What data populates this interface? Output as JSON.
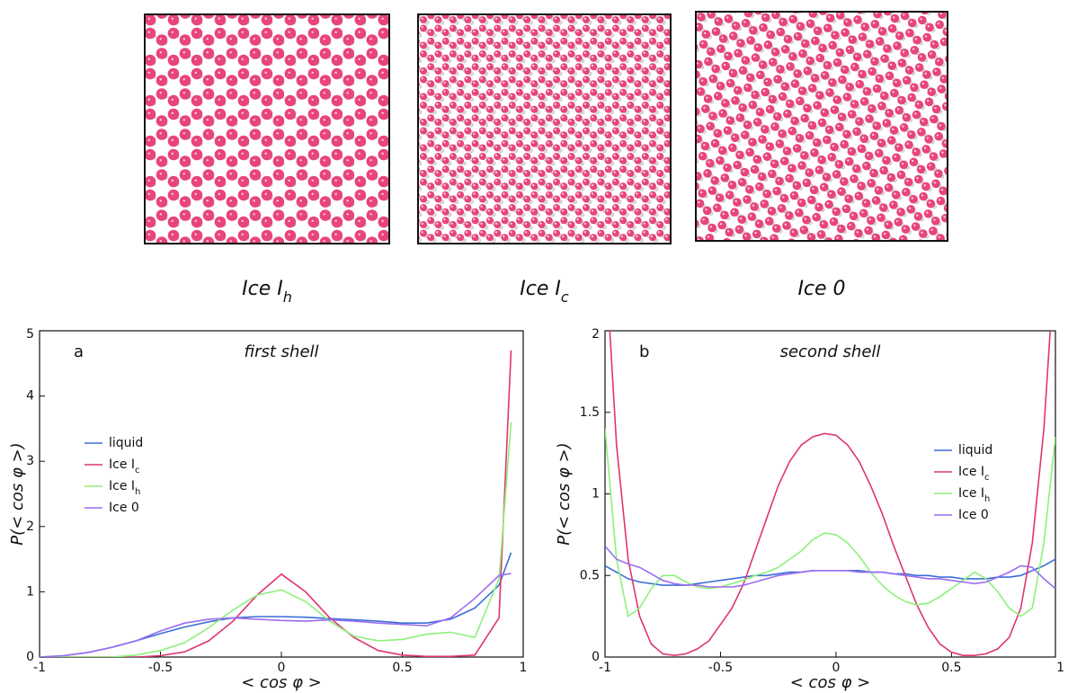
{
  "structures": [
    {
      "label": "Ice I",
      "sub": "h"
    },
    {
      "label": "Ice I",
      "sub": "c"
    },
    {
      "label": "Ice 0"
    }
  ],
  "chart_data": [
    {
      "type": "line",
      "panel": "a",
      "title": "first shell",
      "x_label": "< cos φ >",
      "y_label": "P(< cos φ >)",
      "xlim": [
        -1,
        1
      ],
      "ylim": [
        0,
        5
      ],
      "xticks": [
        -1,
        -0.5,
        0,
        0.5,
        1
      ],
      "yticks": [
        0,
        1,
        2,
        3,
        4,
        5
      ],
      "grid": false,
      "legend": "left",
      "x": [
        -1,
        -0.9,
        -0.8,
        -0.7,
        -0.6,
        -0.5,
        -0.4,
        -0.3,
        -0.2,
        -0.1,
        0,
        0.1,
        0.2,
        0.3,
        0.4,
        0.5,
        0.6,
        0.7,
        0.8,
        0.9,
        0.95
      ],
      "series": [
        {
          "name": "liquid",
          "color": "#3b6fd6",
          "values": [
            0,
            0.02,
            0.07,
            0.15,
            0.25,
            0.36,
            0.46,
            0.54,
            0.6,
            0.62,
            0.62,
            0.61,
            0.59,
            0.57,
            0.55,
            0.52,
            0.52,
            0.58,
            0.75,
            1.1,
            1.6
          ]
        },
        {
          "name": "Ice I",
          "sub": "c",
          "color": "#e0356e",
          "values": [
            0,
            0,
            0,
            0,
            0,
            0.02,
            0.08,
            0.25,
            0.55,
            0.95,
            1.27,
            1.0,
            0.6,
            0.3,
            0.1,
            0.03,
            0.01,
            0.01,
            0.03,
            0.6,
            4.7
          ]
        },
        {
          "name": "Ice I",
          "sub": "h",
          "color": "#8ef07c",
          "values": [
            0,
            0,
            0,
            0,
            0.03,
            0.1,
            0.22,
            0.45,
            0.72,
            0.95,
            1.03,
            0.85,
            0.55,
            0.32,
            0.25,
            0.27,
            0.35,
            0.38,
            0.3,
            1.2,
            3.6
          ]
        },
        {
          "name": "Ice 0",
          "color": "#9b6cf0",
          "values": [
            0,
            0.02,
            0.07,
            0.15,
            0.25,
            0.4,
            0.52,
            0.58,
            0.6,
            0.58,
            0.56,
            0.55,
            0.57,
            0.55,
            0.52,
            0.5,
            0.48,
            0.6,
            0.9,
            1.25,
            1.28
          ]
        }
      ]
    },
    {
      "type": "line",
      "panel": "b",
      "title": "second shell",
      "x_label": "< cos φ >",
      "y_label": "P(< cos φ >)",
      "xlim": [
        -1,
        0.95
      ],
      "ylim": [
        0,
        2
      ],
      "xticks": [
        -1,
        -0.5,
        0,
        0.5,
        1
      ],
      "yticks": [
        0,
        0.5,
        1,
        1.5,
        2
      ],
      "grid": false,
      "legend": "right",
      "x": [
        -1,
        -0.95,
        -0.9,
        -0.85,
        -0.8,
        -0.75,
        -0.7,
        -0.65,
        -0.6,
        -0.55,
        -0.5,
        -0.45,
        -0.4,
        -0.35,
        -0.3,
        -0.25,
        -0.2,
        -0.15,
        -0.1,
        -0.05,
        0,
        0.05,
        0.1,
        0.15,
        0.2,
        0.25,
        0.3,
        0.35,
        0.4,
        0.45,
        0.5,
        0.55,
        0.6,
        0.65,
        0.7,
        0.75,
        0.8,
        0.85,
        0.9,
        0.95
      ],
      "series": [
        {
          "name": "liquid",
          "color": "#3b6fd6",
          "values": [
            0.56,
            0.52,
            0.48,
            0.46,
            0.45,
            0.44,
            0.44,
            0.44,
            0.45,
            0.46,
            0.47,
            0.48,
            0.49,
            0.5,
            0.5,
            0.51,
            0.52,
            0.52,
            0.53,
            0.53,
            0.53,
            0.53,
            0.53,
            0.52,
            0.52,
            0.51,
            0.51,
            0.5,
            0.5,
            0.49,
            0.49,
            0.48,
            0.48,
            0.48,
            0.49,
            0.49,
            0.5,
            0.53,
            0.56,
            0.6
          ]
        },
        {
          "name": "Ice I",
          "sub": "c",
          "color": "#e0356e",
          "values": [
            2.5,
            1.3,
            0.6,
            0.25,
            0.08,
            0.02,
            0.01,
            0.02,
            0.05,
            0.1,
            0.2,
            0.3,
            0.45,
            0.65,
            0.85,
            1.05,
            1.2,
            1.3,
            1.35,
            1.37,
            1.36,
            1.3,
            1.2,
            1.05,
            0.88,
            0.68,
            0.5,
            0.32,
            0.18,
            0.08,
            0.03,
            0.01,
            0.01,
            0.02,
            0.05,
            0.12,
            0.3,
            0.7,
            1.4,
            2.5
          ]
        },
        {
          "name": "Ice I",
          "sub": "h",
          "color": "#8ef07c",
          "values": [
            1.4,
            0.6,
            0.25,
            0.3,
            0.42,
            0.5,
            0.5,
            0.46,
            0.43,
            0.42,
            0.43,
            0.45,
            0.47,
            0.5,
            0.52,
            0.55,
            0.6,
            0.65,
            0.72,
            0.76,
            0.75,
            0.7,
            0.62,
            0.52,
            0.44,
            0.38,
            0.34,
            0.32,
            0.33,
            0.37,
            0.42,
            0.47,
            0.52,
            0.48,
            0.4,
            0.3,
            0.25,
            0.3,
            0.7,
            1.35
          ]
        },
        {
          "name": "Ice 0",
          "color": "#9b6cf0",
          "values": [
            0.68,
            0.6,
            0.57,
            0.55,
            0.51,
            0.47,
            0.45,
            0.44,
            0.44,
            0.43,
            0.43,
            0.43,
            0.44,
            0.46,
            0.48,
            0.5,
            0.51,
            0.52,
            0.53,
            0.53,
            0.53,
            0.53,
            0.52,
            0.52,
            0.52,
            0.51,
            0.5,
            0.49,
            0.48,
            0.48,
            0.47,
            0.46,
            0.45,
            0.46,
            0.49,
            0.52,
            0.56,
            0.55,
            0.48,
            0.42
          ]
        }
      ]
    }
  ]
}
